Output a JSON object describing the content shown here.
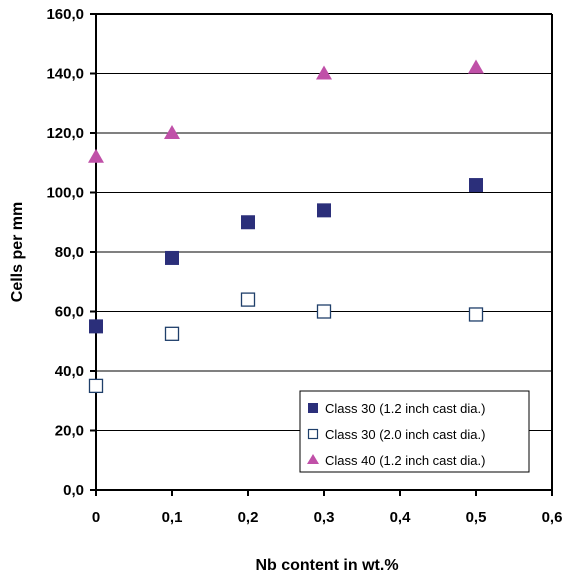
{
  "chart_data": {
    "type": "scatter",
    "title": "",
    "xlabel": "Nb content in wt.%",
    "ylabel": "Cells per mm",
    "xlim": [
      0,
      0.6
    ],
    "ylim": [
      0,
      160
    ],
    "x_ticks": [
      0,
      0.1,
      0.2,
      0.3,
      0.4,
      0.5,
      0.6
    ],
    "x_tick_labels": [
      "0",
      "0,1",
      "0,2",
      "0,3",
      "0,4",
      "0,5",
      "0,6"
    ],
    "y_ticks": [
      0,
      20,
      40,
      60,
      80,
      100,
      120,
      140,
      160
    ],
    "y_tick_labels": [
      "0,0",
      "20,0",
      "40,0",
      "60,0",
      "80,0",
      "100,0",
      "120,0",
      "140,0",
      "160,0"
    ],
    "grid": "horizontal",
    "legend_position": "bottom-right",
    "series": [
      {
        "name": "Class 30 (1.2 inch cast dia.)",
        "marker": "filled-square",
        "color": "#2b2f7a",
        "x": [
          0,
          0.1,
          0.2,
          0.3,
          0.5
        ],
        "y": [
          55,
          78,
          90,
          94,
          102.5
        ]
      },
      {
        "name": "Class 30 (2.0 inch cast dia.)",
        "marker": "open-square",
        "color": "#1f3f6a",
        "x": [
          0,
          0.1,
          0.2,
          0.3,
          0.5
        ],
        "y": [
          35,
          52.5,
          64,
          60,
          59
        ]
      },
      {
        "name": "Class 40 (1.2 inch cast dia.)",
        "marker": "triangle",
        "color": "#c050a8",
        "x": [
          0,
          0.1,
          0.3,
          0.5
        ],
        "y": [
          112,
          120,
          140,
          142
        ]
      }
    ]
  }
}
